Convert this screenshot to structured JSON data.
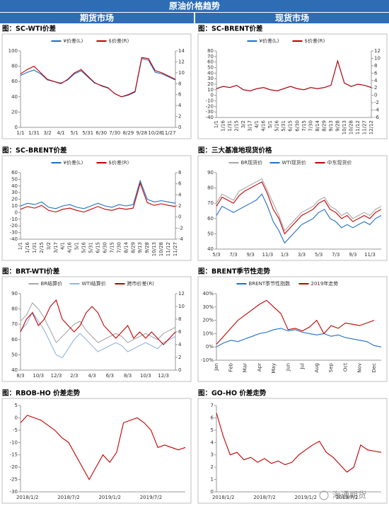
{
  "header": {
    "title": "原油价格趋势",
    "left": "期货市场",
    "right": "现货市场"
  },
  "watermark": "海通期货",
  "chart_data": [
    {
      "type": "line",
      "title": "图：SC-WTI价差",
      "legend": "top",
      "categories": [
        "1/1",
        null,
        "1/31",
        null,
        "3/2",
        null,
        "4/1",
        null,
        "5/1",
        null,
        "5/31",
        null,
        "6/30",
        null,
        "7/30",
        null,
        "8/29",
        null,
        "9/28",
        null,
        "10/28",
        null,
        "11/27",
        null
      ],
      "ylim": [
        0,
        100
      ],
      "yticks": [
        0,
        20,
        40,
        60,
        80,
        100
      ],
      "y2lim": [
        0,
        14
      ],
      "y2ticks": [
        0,
        2,
        4,
        6,
        8,
        10,
        12,
        14
      ],
      "series": [
        {
          "name": "¥价差(L)",
          "color": "#1f6fc5",
          "values": [
            68,
            72,
            75,
            70,
            62,
            60,
            58,
            62,
            70,
            74,
            66,
            58,
            55,
            52,
            44,
            40,
            42,
            46,
            90,
            88,
            72,
            70,
            66,
            62
          ]
        },
        {
          "name": "$价差(R)",
          "color": "#c00000",
          "axis": "y2",
          "values": [
            9.8,
            10.6,
            11.2,
            10.0,
            8.8,
            8.4,
            8.0,
            8.8,
            10.0,
            10.6,
            9.4,
            8.2,
            7.6,
            7.2,
            6.2,
            5.6,
            6.0,
            6.6,
            12.8,
            12.6,
            10.4,
            10.0,
            9.4,
            8.8
          ]
        }
      ]
    },
    {
      "type": "line",
      "title": "图：SC-BRENT价差",
      "legend": "top",
      "xtick_rotation": -90,
      "categories": [
        "1/1",
        "1/16",
        "1/31",
        "2/15",
        "3/2",
        "3/17",
        "4/1",
        "4/16",
        "5/1",
        "5/16",
        "5/31",
        "6/15",
        "6/30",
        "7/15",
        "7/30",
        "8/14",
        "8/29",
        "9/13",
        "9/28",
        "10/13",
        "10/28",
        "11/12",
        "11/27",
        "12/12"
      ],
      "ylim": [
        -40,
        80
      ],
      "yticks": [
        -40,
        -30,
        -20,
        -10,
        0,
        10,
        20,
        30,
        40,
        50,
        60,
        70,
        80
      ],
      "y2lim": [
        -6,
        12
      ],
      "y2ticks": [
        -6,
        -4,
        -2,
        0,
        2,
        4,
        6,
        8,
        10,
        12
      ],
      "series": [
        {
          "name": "¥价差(L)",
          "color": "#1f6fc5",
          "values": [
            12,
            16,
            14,
            18,
            10,
            8,
            12,
            14,
            10,
            8,
            12,
            16,
            12,
            10,
            14,
            12,
            14,
            18,
            62,
            22,
            16,
            20,
            18,
            14
          ]
        },
        {
          "name": "$价差(R)",
          "color": "#c00000",
          "axis": "y2",
          "values": [
            1.8,
            2.4,
            2.1,
            2.7,
            1.5,
            1.2,
            1.8,
            2.1,
            1.5,
            1.2,
            1.8,
            2.4,
            1.8,
            1.5,
            2.1,
            1.8,
            2.1,
            2.7,
            9.3,
            3.3,
            2.4,
            3.0,
            2.7,
            2.1
          ]
        }
      ]
    },
    {
      "type": "line",
      "title": "图：SC-BRENT价差",
      "legend": "top",
      "xtick_rotation": -90,
      "categories": [
        "1/1",
        "1/16",
        "1/31",
        "2/15",
        "3/2",
        "3/17",
        "4/1",
        "4/16",
        "5/1",
        "5/16",
        "5/31",
        "6/15",
        "6/30",
        "7/15",
        "7/30",
        "8/14",
        "8/29",
        "9/13",
        "9/28",
        "10/13",
        "10/28",
        "11/12",
        "11/27"
      ],
      "ylim": [
        -40,
        60
      ],
      "yticks": [
        -40,
        -30,
        -20,
        -10,
        0,
        10,
        20,
        30,
        40,
        50,
        60
      ],
      "y2lim": [
        -4,
        8
      ],
      "y2ticks": [
        -4,
        -2,
        0,
        2,
        4,
        6,
        8
      ],
      "series": [
        {
          "name": "¥价差(L)",
          "color": "#1f6fc5",
          "values": [
            10,
            14,
            12,
            16,
            8,
            6,
            10,
            12,
            8,
            6,
            10,
            14,
            10,
            8,
            12,
            10,
            12,
            48,
            20,
            16,
            18,
            16,
            14
          ]
        },
        {
          "name": "$价差(R)",
          "color": "#c00000",
          "axis": "y2",
          "values": [
            1.4,
            1.9,
            1.6,
            2.1,
            1.2,
            0.9,
            1.4,
            1.6,
            1.2,
            0.9,
            1.4,
            1.9,
            1.4,
            1.2,
            1.6,
            1.4,
            1.6,
            6.1,
            2.6,
            2.1,
            2.4,
            2.1,
            1.9
          ]
        }
      ]
    },
    {
      "type": "line",
      "title": "图：三大基准地现货价格",
      "legend": "top",
      "categories": [
        "5/3",
        null,
        null,
        "7/3",
        null,
        null,
        "9/3",
        null,
        null,
        "11/3",
        null,
        null,
        "1/3",
        null,
        null,
        "3/3",
        null,
        null,
        "5/3",
        null,
        null,
        "7/3",
        null,
        null,
        "9/3",
        null,
        null,
        "11/3",
        null,
        null
      ],
      "ylim": [
        40,
        90
      ],
      "yticks": [
        40,
        50,
        60,
        70,
        80,
        90
      ],
      "series": [
        {
          "name": "BR现货价",
          "color": "#a6a6a6",
          "values": [
            70,
            76,
            74,
            72,
            78,
            80,
            82,
            84,
            86,
            78,
            70,
            62,
            52,
            56,
            60,
            64,
            66,
            68,
            72,
            74,
            68,
            66,
            62,
            64,
            60,
            62,
            64,
            62,
            66,
            68
          ]
        },
        {
          "name": "WTI现货价",
          "color": "#1f6fc5",
          "values": [
            62,
            68,
            66,
            64,
            66,
            68,
            70,
            72,
            76,
            68,
            58,
            52,
            44,
            48,
            52,
            56,
            58,
            60,
            64,
            66,
            60,
            58,
            54,
            56,
            54,
            56,
            58,
            56,
            60,
            62
          ]
        },
        {
          "name": "中东现货价",
          "color": "#c00000",
          "values": [
            68,
            74,
            72,
            70,
            75,
            78,
            80,
            82,
            84,
            76,
            66,
            60,
            50,
            54,
            58,
            62,
            64,
            66,
            70,
            72,
            66,
            64,
            60,
            62,
            58,
            60,
            62,
            60,
            64,
            66
          ]
        }
      ]
    },
    {
      "type": "line",
      "title": "图：BRT-WTI价差",
      "legend": "top",
      "categories": [
        "8/3",
        null,
        null,
        "10/3",
        null,
        null,
        "12/3",
        null,
        null,
        "2/3",
        null,
        null,
        "4/3",
        null,
        null,
        "6/3",
        null,
        null,
        "8/3",
        null,
        null,
        "10/3",
        null,
        null,
        "12/3",
        null,
        null
      ],
      "ylim": [
        40,
        90
      ],
      "yticks": [
        40,
        50,
        60,
        70,
        80,
        90
      ],
      "y2lim": [
        0,
        12
      ],
      "y2ticks": [
        0,
        2,
        4,
        6,
        8,
        10,
        12
      ],
      "series": [
        {
          "name": "BR结算价",
          "color": "#a6a6a6",
          "values": [
            72,
            76,
            84,
            80,
            74,
            66,
            58,
            62,
            66,
            70,
            72,
            66,
            62,
            58,
            60,
            62,
            64,
            62,
            58,
            60,
            62,
            64,
            62,
            60,
            64,
            66,
            68
          ]
        },
        {
          "name": "WTI结算价",
          "color": "#8fb4de",
          "values": [
            66,
            70,
            78,
            72,
            66,
            58,
            50,
            48,
            54,
            60,
            64,
            60,
            56,
            52,
            54,
            56,
            58,
            56,
            52,
            54,
            56,
            58,
            56,
            54,
            58,
            60,
            62
          ]
        },
        {
          "name": "跨市价差(R)",
          "color": "#c00000",
          "axis": "y2",
          "values": [
            6.0,
            8.0,
            9.0,
            7.0,
            8.0,
            10.0,
            11.0,
            8.0,
            7.0,
            6.0,
            7.0,
            9.0,
            10.0,
            9.0,
            7.0,
            6.0,
            5.0,
            6.0,
            7.0,
            5.0,
            6.0,
            5.0,
            6.0,
            5.0,
            4.0,
            5.0,
            6.0
          ]
        }
      ]
    },
    {
      "type": "line",
      "title": "图：BRENT季节性走势",
      "legend": "top",
      "xtick_rotation": -90,
      "categories": [
        "Jan",
        null,
        "Feb",
        null,
        "Mar",
        null,
        "Apr",
        null,
        "May",
        null,
        "Jun",
        null,
        "Jul",
        null,
        "Aug",
        null,
        "Sep",
        null,
        "Oct",
        null,
        "Nov",
        null,
        "Dec",
        null
      ],
      "ylim": [
        -10,
        40
      ],
      "yticks": [
        {
          "value": -10,
          "label": "-10%"
        },
        {
          "value": 0,
          "label": "0%"
        },
        {
          "value": 10,
          "label": "10%"
        },
        {
          "value": 20,
          "label": "20%"
        },
        {
          "value": 30,
          "label": "30%"
        },
        {
          "value": 40,
          "label": "40%"
        }
      ],
      "series": [
        {
          "name": "BRENT季节性指数",
          "color": "#1f6fc5",
          "values": [
            0,
            3,
            5,
            4,
            6,
            8,
            10,
            11,
            13,
            14,
            12,
            13,
            11,
            10,
            9,
            10,
            8,
            9,
            7,
            6,
            5,
            4,
            1,
            0
          ]
        },
        {
          "name": "2019年走势",
          "color": "#c00000",
          "values": [
            2,
            8,
            14,
            20,
            24,
            28,
            32,
            35,
            30,
            25,
            13,
            14,
            12,
            15,
            20,
            10,
            16,
            14,
            18,
            17,
            16,
            18,
            20,
            null
          ]
        }
      ]
    },
    {
      "type": "line",
      "title": "图：RBOB-HO 价差走势",
      "categories": [
        null,
        "2018/1/2",
        null,
        null,
        null,
        null,
        null,
        "2018/7/2",
        null,
        null,
        null,
        null,
        null,
        "2019/1/2",
        null,
        null,
        null,
        null,
        null,
        "2019/7/2",
        null,
        null,
        null,
        null,
        null
      ],
      "ylim": [
        -30,
        5
      ],
      "yticks": [
        -30,
        -25,
        -20,
        -15,
        -10,
        -5,
        0,
        5
      ],
      "series": [
        {
          "color": "#c00000",
          "values": [
            -2,
            1,
            0,
            -1,
            -3,
            -5,
            -8,
            -10,
            -15,
            -20,
            -25,
            -20,
            -15,
            -18,
            -14,
            -2,
            -1,
            0,
            -2,
            -5,
            -12,
            -11,
            -12,
            -13,
            -12
          ]
        }
      ]
    },
    {
      "type": "line",
      "title": "图：GO-HO 价差走势",
      "categories": [
        null,
        "2018/1/2",
        null,
        null,
        null,
        null,
        null,
        "2018/7/2",
        null,
        null,
        null,
        null,
        null,
        "2019/1/2",
        null,
        null,
        null,
        null,
        null,
        "2019/7/2",
        null,
        null,
        null,
        null,
        null
      ],
      "ylim": [
        0,
        7
      ],
      "yticks": [
        0,
        1,
        2,
        3,
        4,
        5,
        6,
        7
      ],
      "series": [
        {
          "color": "#c00000",
          "values": [
            6.4,
            4.5,
            3.0,
            3.2,
            2.6,
            2.8,
            2.4,
            2.7,
            2.3,
            2.5,
            2.2,
            2.4,
            3.0,
            3.4,
            3.8,
            4.1,
            3.2,
            2.8,
            2.2,
            1.6,
            2.0,
            3.8,
            3.4,
            3.3,
            3.2
          ]
        }
      ]
    }
  ]
}
